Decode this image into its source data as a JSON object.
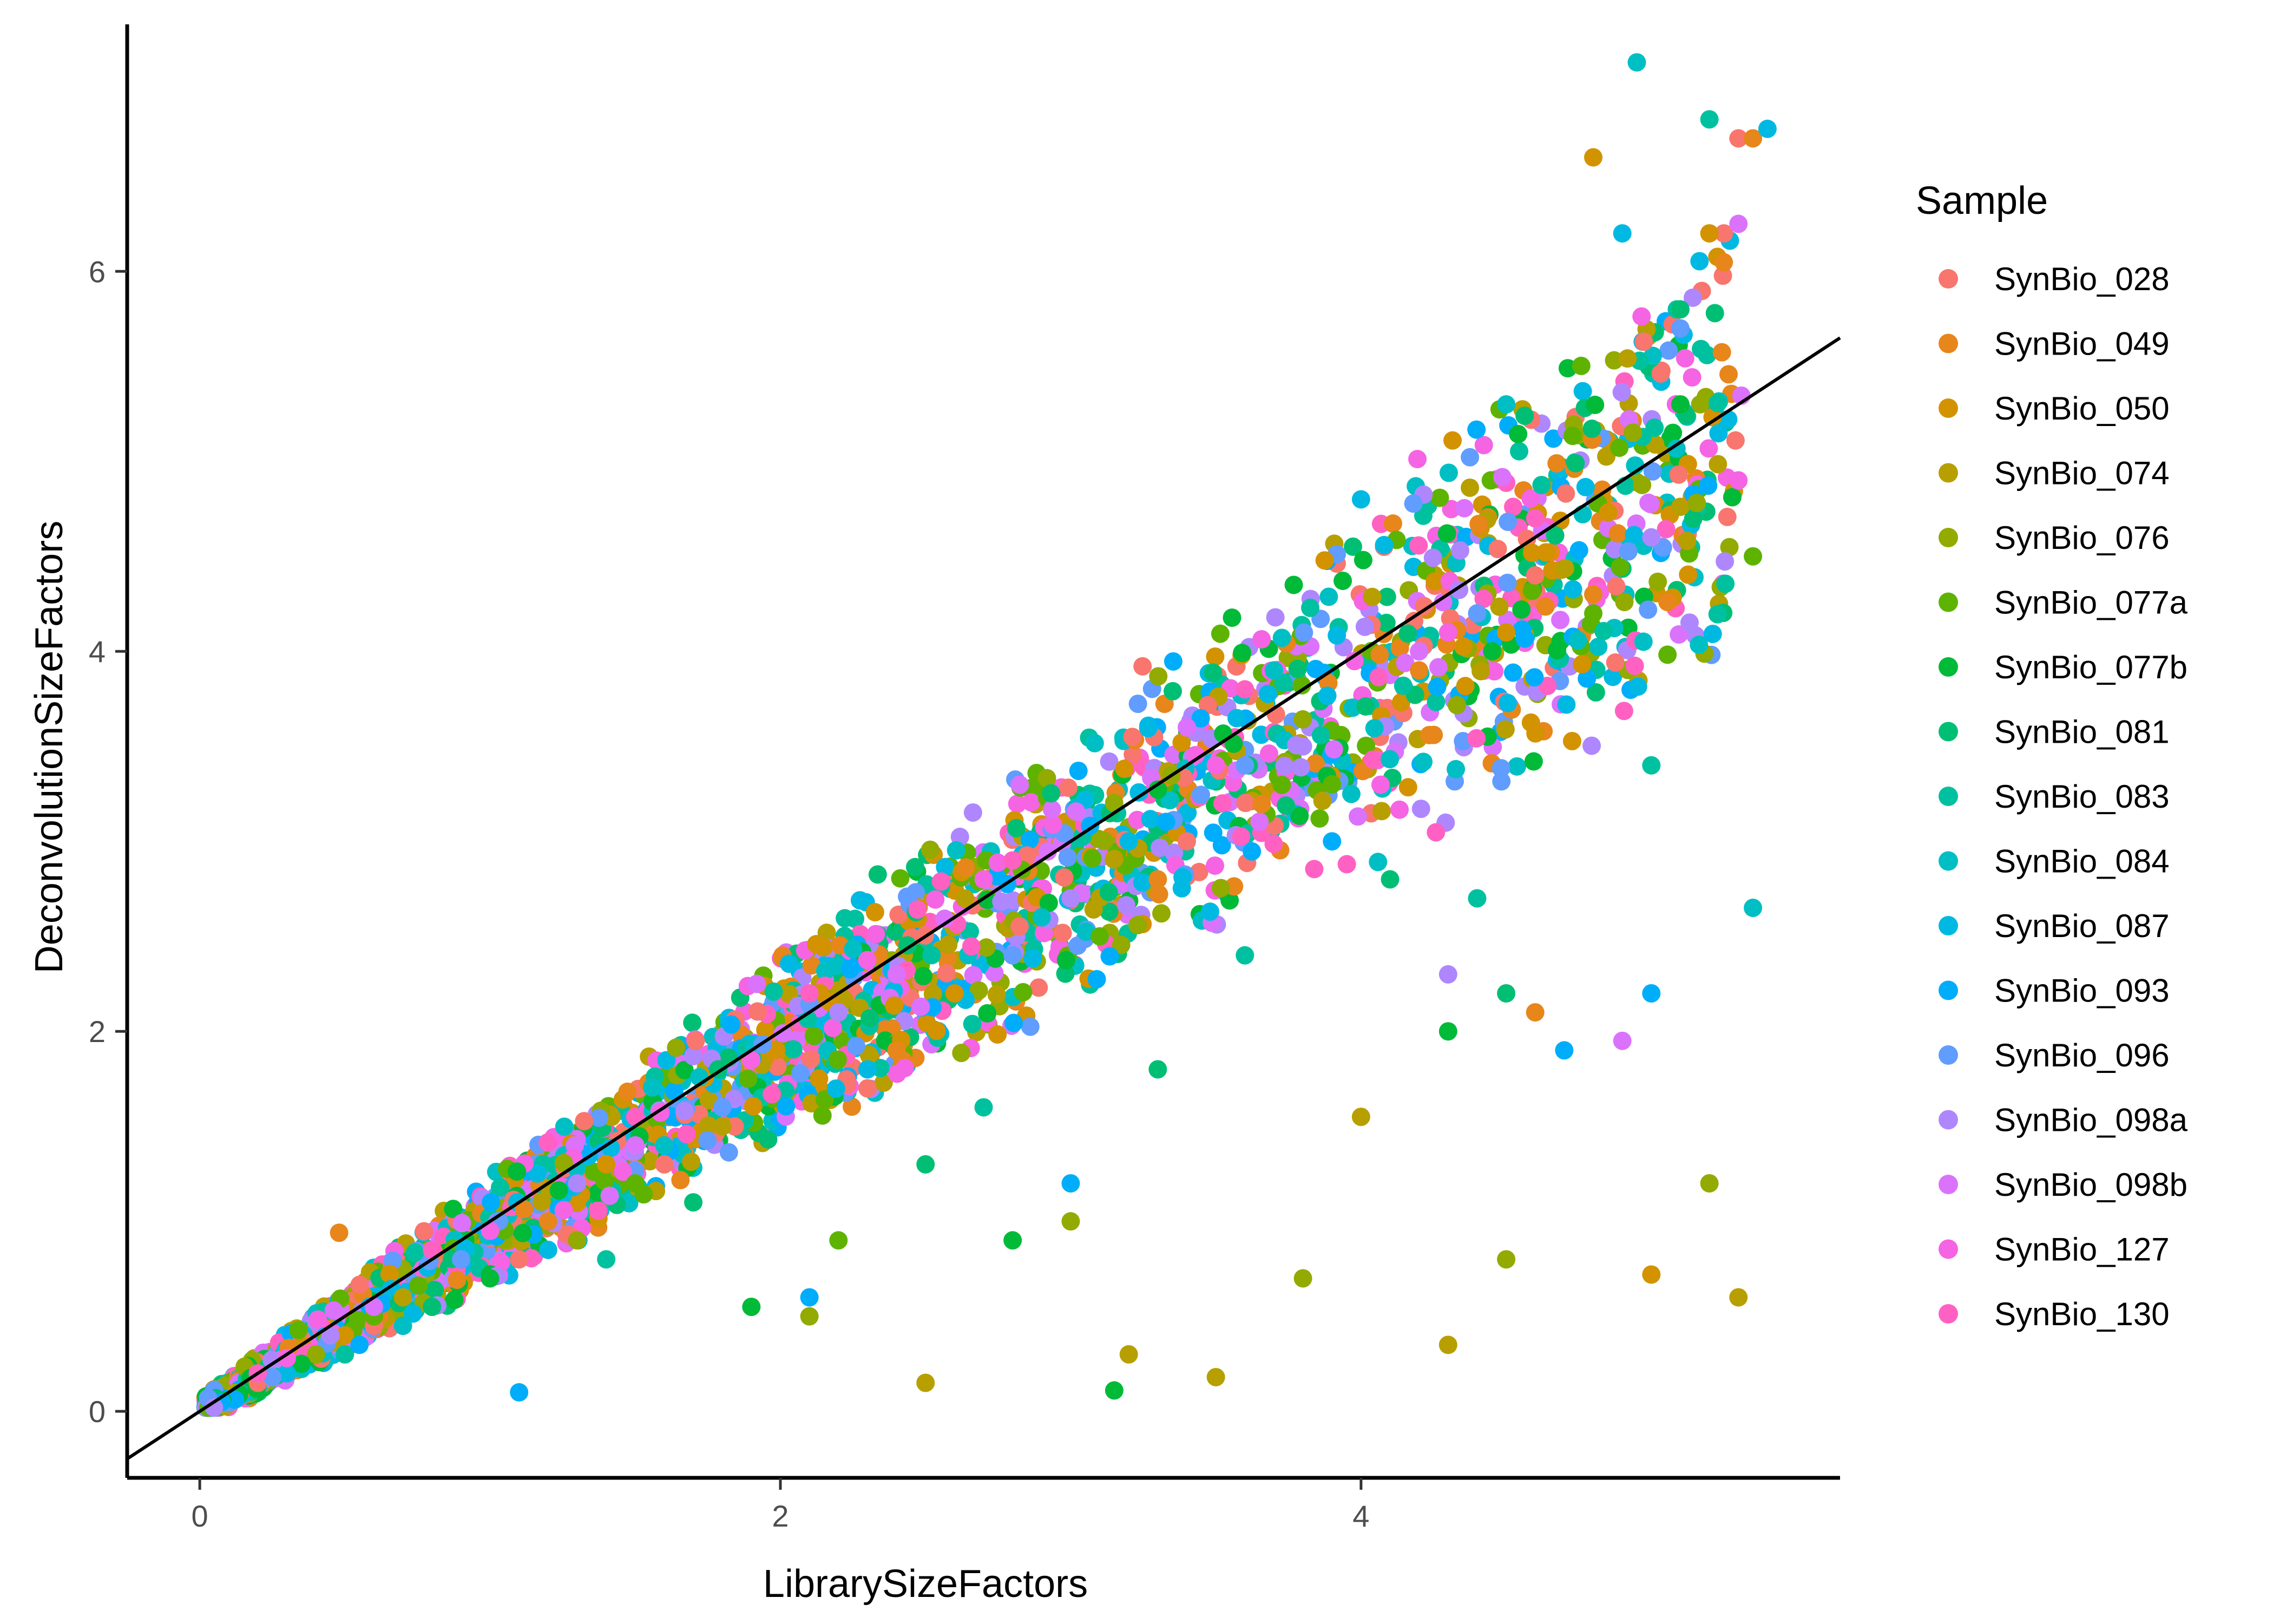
{
  "chart_data": {
    "type": "scatter",
    "title": "",
    "xlabel": "LibrarySizeFactors",
    "ylabel": "DeconvolutionSizeFactors",
    "xlim": [
      -0.25,
      5.65
    ],
    "ylim": [
      -0.35,
      7.3
    ],
    "x_ticks": [
      0,
      2,
      4
    ],
    "y_ticks": [
      0,
      2,
      4,
      6
    ],
    "x_tick_labels": [
      "0",
      "2",
      "4"
    ],
    "y_tick_labels": [
      "0",
      "2",
      "4",
      "6"
    ],
    "grid": false,
    "legend_title": "Sample",
    "legend_position": "right",
    "reference_line": {
      "type": "identity",
      "slope": 1,
      "intercept": 0,
      "color": "#000000"
    },
    "series": [
      {
        "name": "SynBio_028",
        "color": "#F8766D",
        "points": [
          [
            0.2,
            0.15
          ],
          [
            0.6,
            0.45
          ],
          [
            1.1,
            0.8
          ],
          [
            1.6,
            1.3
          ],
          [
            2.3,
            1.7
          ],
          [
            3.4,
            3.0
          ],
          [
            4.6,
            4.4
          ],
          [
            5.25,
            6.2
          ],
          [
            5.3,
            6.7
          ]
        ]
      },
      {
        "name": "SynBio_049",
        "color": "#E7861B",
        "points": [
          [
            0.48,
            0.94
          ],
          [
            1.2,
            1.0
          ],
          [
            2.4,
            1.9
          ],
          [
            3.3,
            2.8
          ],
          [
            4.2,
            3.9
          ],
          [
            4.6,
            2.1
          ],
          [
            4.8,
            4.3
          ],
          [
            5.35,
            6.7
          ]
        ]
      },
      {
        "name": "SynBio_050",
        "color": "#D39200",
        "points": [
          [
            0.5,
            0.4
          ],
          [
            1.4,
            1.3
          ],
          [
            2.6,
            2.2
          ],
          [
            3.5,
            3.4
          ],
          [
            4.5,
            4.1
          ],
          [
            4.8,
            6.6
          ],
          [
            5.0,
            0.72
          ],
          [
            5.2,
            6.2
          ]
        ]
      },
      {
        "name": "SynBio_074",
        "color": "#B79F00",
        "points": [
          [
            0.7,
            0.6
          ],
          [
            1.8,
            1.5
          ],
          [
            2.5,
            0.15
          ],
          [
            3.2,
            0.3
          ],
          [
            3.5,
            0.18
          ],
          [
            4.0,
            1.55
          ],
          [
            4.3,
            0.35
          ],
          [
            5.3,
            0.6
          ]
        ]
      },
      {
        "name": "SynBio_076",
        "color": "#93AA00",
        "points": [
          [
            0.4,
            0.3
          ],
          [
            1.3,
            0.9
          ],
          [
            2.1,
            0.5
          ],
          [
            3.0,
            1.0
          ],
          [
            3.8,
            0.7
          ],
          [
            4.5,
            0.8
          ],
          [
            5.2,
            1.2
          ]
        ]
      },
      {
        "name": "SynBio_077a",
        "color": "#5EB300",
        "points": [
          [
            0.6,
            0.5
          ],
          [
            1.5,
            1.2
          ],
          [
            2.2,
            0.9
          ],
          [
            3.1,
            2.5
          ],
          [
            3.9,
            3.3
          ],
          [
            4.8,
            4.2
          ],
          [
            5.35,
            4.5
          ]
        ]
      },
      {
        "name": "SynBio_077b",
        "color": "#00BA38",
        "points": [
          [
            0.35,
            0.25
          ],
          [
            1.0,
            0.7
          ],
          [
            1.9,
            0.55
          ],
          [
            2.8,
            0.9
          ],
          [
            3.15,
            0.11
          ],
          [
            4.3,
            2.0
          ],
          [
            5.1,
            5.3
          ]
        ]
      },
      {
        "name": "SynBio_081",
        "color": "#00BF74",
        "points": [
          [
            0.8,
            0.55
          ],
          [
            1.7,
            1.1
          ],
          [
            2.5,
            1.3
          ],
          [
            3.3,
            1.8
          ],
          [
            4.1,
            2.8
          ],
          [
            4.5,
            2.2
          ],
          [
            5.1,
            5.8
          ]
        ]
      },
      {
        "name": "SynBio_083",
        "color": "#00C19F",
        "points": [
          [
            0.5,
            0.3
          ],
          [
            1.4,
            0.8
          ],
          [
            2.7,
            1.6
          ],
          [
            3.6,
            2.4
          ],
          [
            4.4,
            2.7
          ],
          [
            5.0,
            3.4
          ],
          [
            5.2,
            6.8
          ]
        ]
      },
      {
        "name": "SynBio_084",
        "color": "#00BFC4",
        "points": [
          [
            0.7,
            0.45
          ],
          [
            1.6,
            1.4
          ],
          [
            2.9,
            2.6
          ],
          [
            3.7,
            3.9
          ],
          [
            4.5,
            5.3
          ],
          [
            4.95,
            7.1
          ],
          [
            5.35,
            2.65
          ]
        ]
      },
      {
        "name": "SynBio_087",
        "color": "#00B9E3",
        "points": [
          [
            0.3,
            0.2
          ],
          [
            1.2,
            0.85
          ],
          [
            2.3,
            1.8
          ],
          [
            3.2,
            3.0
          ],
          [
            4.0,
            4.8
          ],
          [
            4.9,
            6.2
          ],
          [
            5.4,
            6.75
          ]
        ]
      },
      {
        "name": "SynBio_093",
        "color": "#00ADFA",
        "points": [
          [
            0.55,
            0.35
          ],
          [
            1.1,
            0.1
          ],
          [
            2.1,
            0.6
          ],
          [
            3.0,
            1.2
          ],
          [
            3.9,
            3.0
          ],
          [
            4.7,
            1.9
          ],
          [
            5.0,
            2.2
          ]
        ]
      },
      {
        "name": "SynBio_096",
        "color": "#619CFF",
        "points": [
          [
            0.25,
            0.18
          ],
          [
            0.9,
            0.8
          ],
          [
            1.8,
            1.6
          ],
          [
            2.8,
            2.4
          ],
          [
            3.6,
            3.4
          ],
          [
            4.4,
            4.2
          ],
          [
            5.1,
            5.7
          ]
        ]
      },
      {
        "name": "SynBio_098a",
        "color": "#AE87FF",
        "points": [
          [
            0.45,
            0.4
          ],
          [
            1.3,
            1.2
          ],
          [
            2.2,
            2.1
          ],
          [
            3.0,
            2.7
          ],
          [
            3.8,
            3.5
          ],
          [
            4.3,
            2.3
          ],
          [
            5.0,
            4.6
          ]
        ]
      },
      {
        "name": "SynBio_098b",
        "color": "#DB72FB",
        "points": [
          [
            0.6,
            0.55
          ],
          [
            1.5,
            1.4
          ],
          [
            2.4,
            2.3
          ],
          [
            3.4,
            3.6
          ],
          [
            4.2,
            4.0
          ],
          [
            4.9,
            1.95
          ],
          [
            5.3,
            6.25
          ]
        ]
      },
      {
        "name": "SynBio_127",
        "color": "#F564E3",
        "points": [
          [
            0.3,
            0.28
          ],
          [
            1.0,
            0.95
          ],
          [
            1.9,
            1.85
          ],
          [
            2.7,
            2.8
          ],
          [
            3.5,
            3.4
          ],
          [
            4.3,
            4.1
          ],
          [
            5.3,
            4.9
          ]
        ]
      },
      {
        "name": "SynBio_130",
        "color": "#FF61C3",
        "points": [
          [
            0.2,
            0.2
          ],
          [
            0.8,
            0.85
          ],
          [
            1.5,
            1.55
          ],
          [
            2.1,
            2.2
          ],
          [
            2.8,
            2.9
          ],
          [
            3.6,
            3.8
          ],
          [
            4.6,
            4.7
          ]
        ]
      }
    ]
  }
}
